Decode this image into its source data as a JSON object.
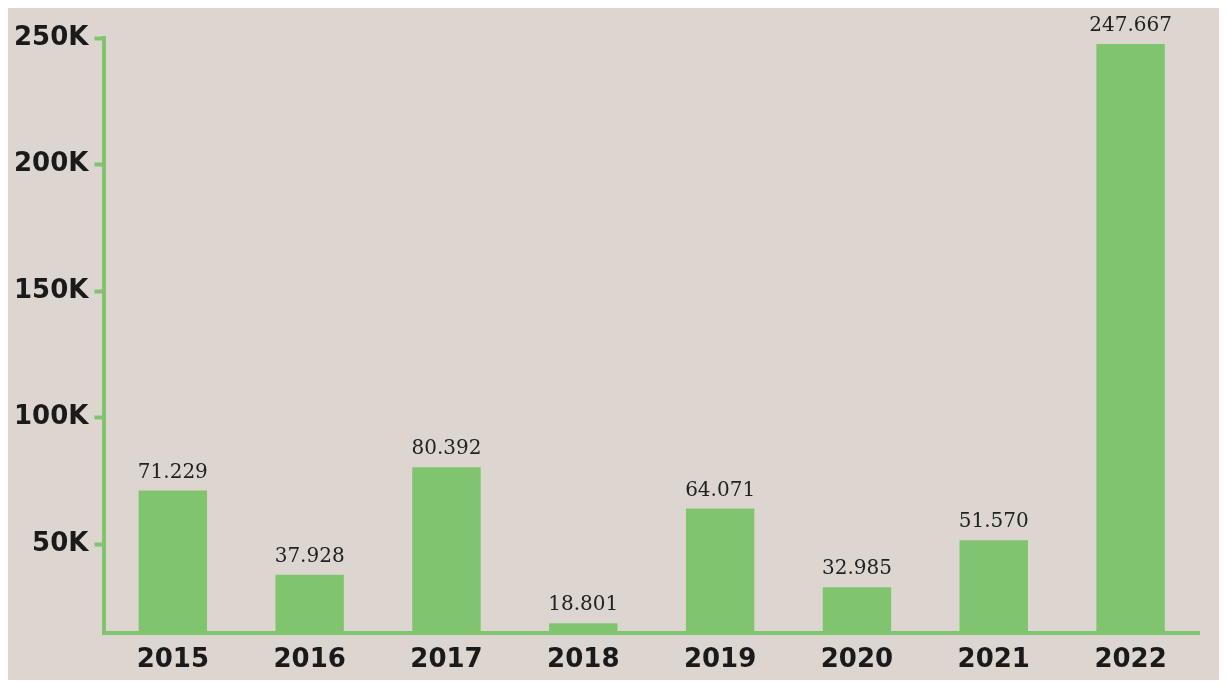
{
  "chart_data": {
    "type": "bar",
    "categories": [
      "2015",
      "2016",
      "2017",
      "2018",
      "2019",
      "2020",
      "2021",
      "2022"
    ],
    "values": [
      71229,
      37928,
      80392,
      18801,
      64071,
      32985,
      51570,
      247667
    ],
    "value_labels": [
      "71.229",
      "37.928",
      "80.392",
      "18.801",
      "64.071",
      "32.985",
      "51.570",
      "247.667"
    ],
    "color": "#80c56e",
    "ylim": [
      15000,
      250000
    ],
    "yticks": [
      {
        "value": 50000,
        "label": "50K"
      },
      {
        "value": 100000,
        "label": "100K"
      },
      {
        "value": 150000,
        "label": "150K"
      },
      {
        "value": 200000,
        "label": "200K"
      },
      {
        "value": 250000,
        "label": "250K"
      }
    ],
    "grid": false,
    "legend": false
  }
}
